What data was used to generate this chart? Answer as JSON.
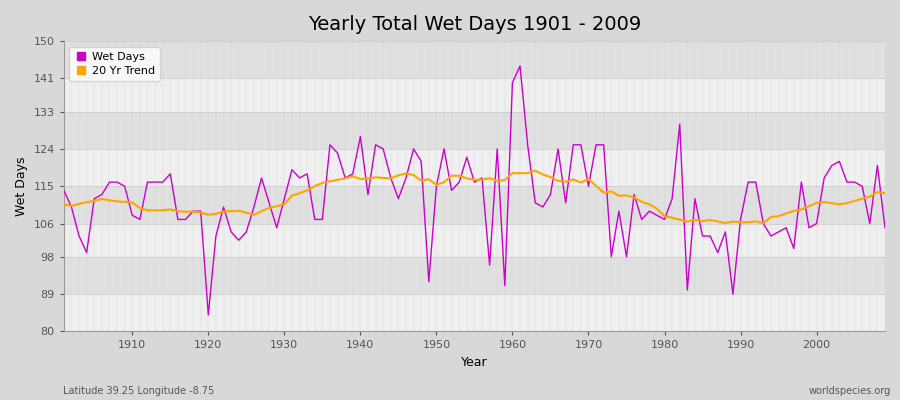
{
  "title": "Yearly Total Wet Days 1901 - 2009",
  "xlabel": "Year",
  "ylabel": "Wet Days",
  "lat_lon_label": "Latitude 39.25 Longitude -8.75",
  "watermark": "worldspecies.org",
  "ylim": [
    80,
    150
  ],
  "yticks": [
    80,
    89,
    98,
    106,
    115,
    124,
    133,
    141,
    150
  ],
  "xlim": [
    1901,
    2009
  ],
  "xticks": [
    1910,
    1920,
    1930,
    1940,
    1950,
    1960,
    1970,
    1980,
    1990,
    2000
  ],
  "years": [
    1901,
    1902,
    1903,
    1904,
    1905,
    1906,
    1907,
    1908,
    1909,
    1910,
    1911,
    1912,
    1913,
    1914,
    1915,
    1916,
    1917,
    1918,
    1919,
    1920,
    1921,
    1922,
    1923,
    1924,
    1925,
    1926,
    1927,
    1928,
    1929,
    1930,
    1931,
    1932,
    1933,
    1934,
    1935,
    1936,
    1937,
    1938,
    1939,
    1940,
    1941,
    1942,
    1943,
    1944,
    1945,
    1946,
    1947,
    1948,
    1949,
    1950,
    1951,
    1952,
    1953,
    1954,
    1955,
    1956,
    1957,
    1958,
    1959,
    1960,
    1961,
    1962,
    1963,
    1964,
    1965,
    1966,
    1967,
    1968,
    1969,
    1970,
    1971,
    1972,
    1973,
    1974,
    1975,
    1976,
    1977,
    1978,
    1979,
    1980,
    1981,
    1982,
    1983,
    1984,
    1985,
    1986,
    1987,
    1988,
    1989,
    1990,
    1991,
    1992,
    1993,
    1994,
    1995,
    1996,
    1997,
    1998,
    1999,
    2000,
    2001,
    2002,
    2003,
    2004,
    2005,
    2006,
    2007,
    2008,
    2009
  ],
  "wet_days": [
    114,
    110,
    103,
    99,
    112,
    113,
    116,
    116,
    115,
    108,
    107,
    116,
    116,
    116,
    118,
    107,
    107,
    109,
    109,
    84,
    103,
    110,
    104,
    102,
    104,
    110,
    117,
    111,
    105,
    112,
    119,
    117,
    118,
    107,
    107,
    125,
    123,
    117,
    118,
    127,
    113,
    125,
    124,
    117,
    112,
    117,
    124,
    121,
    92,
    115,
    124,
    114,
    116,
    122,
    116,
    117,
    96,
    124,
    91,
    140,
    144,
    125,
    111,
    110,
    113,
    124,
    111,
    125,
    125,
    115,
    125,
    125,
    98,
    109,
    98,
    113,
    107,
    109,
    108,
    107,
    112,
    130,
    90,
    112,
    103,
    103,
    99,
    104,
    89,
    107,
    116,
    116,
    106,
    103,
    104,
    105,
    100,
    116,
    105,
    106,
    117,
    120,
    121,
    116,
    116,
    115,
    106,
    120,
    105
  ],
  "trend": [
    110,
    109,
    109,
    109,
    109,
    109,
    109,
    109,
    109,
    108,
    108,
    108,
    108,
    108,
    109,
    109,
    109,
    109,
    109,
    108,
    108,
    108,
    108,
    108,
    108,
    109,
    109,
    109,
    109,
    109,
    109,
    109,
    109,
    109,
    110,
    110,
    110,
    110,
    110,
    110,
    110,
    110,
    110,
    110,
    110,
    110,
    110,
    110,
    110,
    110,
    110,
    110,
    110,
    110,
    110,
    110,
    110,
    110,
    110,
    110,
    110,
    110,
    110,
    110,
    110,
    110,
    110,
    110,
    110,
    110,
    110,
    110,
    110,
    112,
    112,
    111,
    110,
    109,
    108,
    107,
    107,
    107,
    107,
    107,
    107,
    106,
    105,
    104,
    103,
    103,
    103,
    103,
    103,
    103,
    103,
    103,
    104,
    105,
    105,
    105,
    105,
    105,
    106,
    106,
    106,
    106,
    106,
    106,
    106
  ],
  "wet_days_color": "#CC00CC",
  "trend_color": "#FFA500",
  "background_color": "#D8D8D8",
  "plot_bg_color_light": "#E8E8E8",
  "plot_bg_color_dark": "#DCDCDC",
  "grid_color_v": "#C0C0C0",
  "white_band": "#EFEFEF",
  "dark_band": "#E0E0E0",
  "legend_labels": [
    "Wet Days",
    "20 Yr Trend"
  ],
  "title_fontsize": 14,
  "axis_label_fontsize": 9,
  "tick_fontsize": 8
}
